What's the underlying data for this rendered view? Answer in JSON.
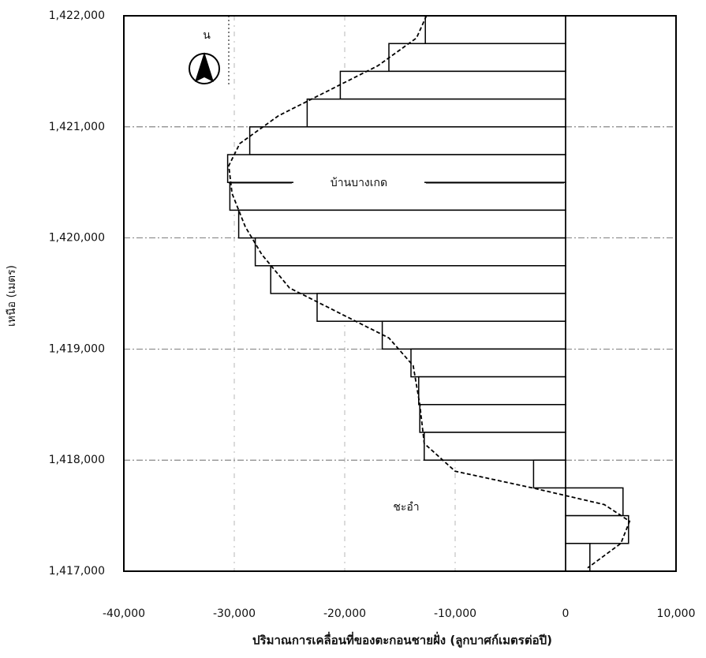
{
  "chart_data": {
    "type": "hbar-histogram",
    "x_label": "ปริมาณการเคลื่อนที่ของตะกอนชายฝั่ง (ลูกบาศก์เมตรต่อปี)",
    "y_label": "เหนือ (เมตร)",
    "annotations": [
      "บ้านบางเกด",
      "ชะอำ",
      "น"
    ],
    "bins": [
      1422000,
      1421750,
      1421500,
      1421250,
      1421000,
      1420750,
      1420500,
      1420250,
      1420000,
      1419750,
      1419500,
      1419250,
      1419000,
      1418750,
      1418500,
      1418250,
      1418000,
      1417750,
      1417500,
      1417250,
      1417000
    ],
    "values": [
      -12700,
      -16000,
      -20400,
      -23400,
      -28600,
      -30600,
      -30400,
      -29600,
      -28100,
      -26700,
      -22500,
      -16600,
      -14000,
      -13300,
      -13200,
      -12800,
      -2900,
      5200,
      5700,
      2200
    ],
    "trend": {
      "x": [
        -12600,
        -13500,
        -17000,
        -21000,
        -26000,
        -29500,
        -30500,
        -30200,
        -29000,
        -27500,
        -25000,
        -20000,
        -16000,
        -13800,
        -13200,
        -12800,
        -10000,
        -3000,
        3500,
        5800,
        5000,
        2000
      ],
      "y": [
        1422000,
        1421800,
        1421550,
        1421350,
        1421100,
        1420850,
        1420650,
        1420400,
        1420100,
        1419850,
        1419550,
        1419300,
        1419100,
        1418850,
        1418500,
        1418150,
        1417900,
        1417750,
        1417600,
        1417450,
        1417250,
        1417030
      ]
    },
    "xlim": [
      -40000,
      10000
    ],
    "ylim": [
      1417000,
      1422000
    ],
    "xticks": [
      {
        "value": -40000,
        "label": "-40,000"
      },
      {
        "value": -30000,
        "label": "-30,000"
      },
      {
        "value": -20000,
        "label": "-20,000"
      },
      {
        "value": -10000,
        "label": "-10,000"
      },
      0,
      {
        "value": 10000,
        "label": "10,000"
      }
    ],
    "yticks": [
      {
        "value": 1417000,
        "label": "1,417,000"
      },
      {
        "value": 1418000,
        "label": "1,418,000"
      },
      {
        "value": 1419000,
        "label": "1,419,000"
      },
      {
        "value": 1420000,
        "label": "1,420,000"
      },
      {
        "value": 1421000,
        "label": "1,421,000"
      },
      {
        "value": 1422000,
        "label": "1,422,000"
      }
    ],
    "grid": true
  }
}
